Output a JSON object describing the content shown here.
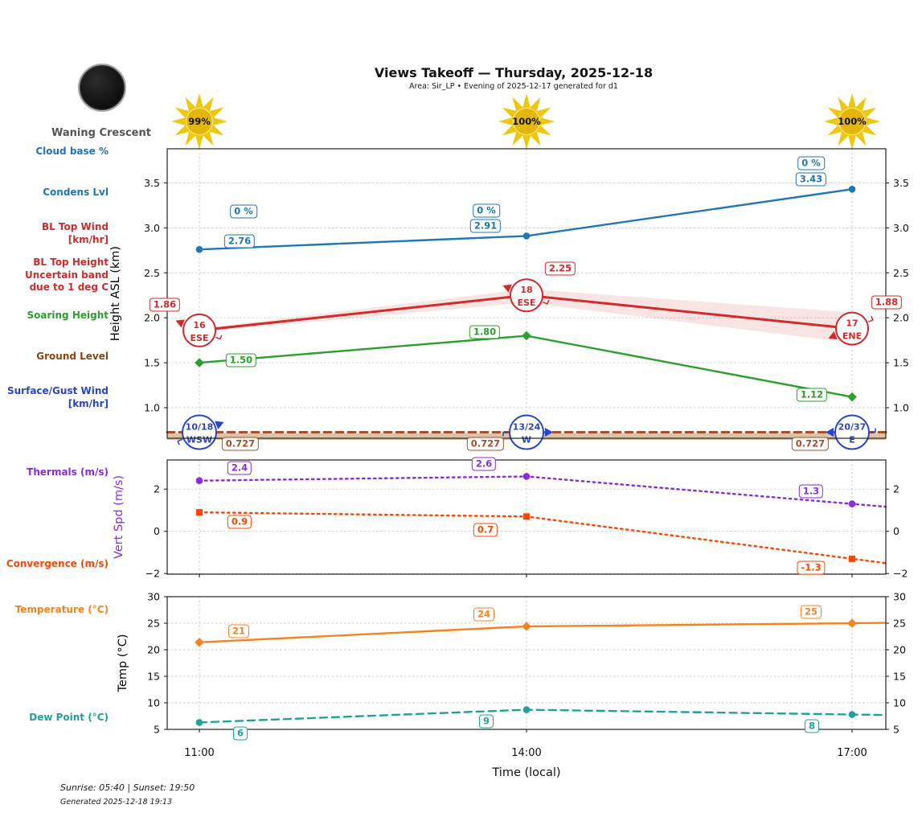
{
  "header": {
    "title": "Views Takeoff — Thursday, 2025-12-18",
    "subtitle": "Area: Sir_LP • Evening of 2025-12-17 generated for d1"
  },
  "moon": {
    "phase": "Waning Crescent"
  },
  "sunshine": {
    "percents": [
      "99%",
      "100%",
      "100%"
    ]
  },
  "xaxis": {
    "ticks": [
      "11:00",
      "14:00",
      "17:00"
    ],
    "label": "Time (local)"
  },
  "footer": {
    "sun_times": "Sunrise: 05:40 | Sunset: 19:50",
    "generated": "Generated 2025-12-18 19:13"
  },
  "colors": {
    "condens_blue": "#1f77b4",
    "bl_red": "#d22b2b",
    "soaring_green": "#2ca02c",
    "ground_brown_text": "#8B4513",
    "ground_line": "#a0522d",
    "ground_band": "#d2b48c",
    "surface_wind_blue": "#2946c8",
    "thermals_purple": "#8a2be2",
    "convergence_orangered": "#ff4500",
    "temperature_orange": "#f78320",
    "dew_teal": "#1fa396",
    "sun_gold": "#e4b606",
    "moon_label_gray": "#555555"
  },
  "side_labels": [
    {
      "id": "cloud_base",
      "lines": [
        "Cloud base %"
      ],
      "color": "#1f77b4"
    },
    {
      "id": "condens",
      "lines": [
        "Condens Lvl"
      ],
      "color": "#1f77b4"
    },
    {
      "id": "bl_top_wind",
      "lines": [
        "BL Top Wind",
        "[km/hr]"
      ],
      "color": "#d22b2b"
    },
    {
      "id": "bl_top_height",
      "lines": [
        "BL Top Height",
        "Uncertain band",
        "due to 1 deg C"
      ],
      "color": "#d22b2b"
    },
    {
      "id": "soaring",
      "lines": [
        "Soaring Height"
      ],
      "color": "#2ca02c"
    },
    {
      "id": "ground",
      "lines": [
        "Ground Level"
      ],
      "color": "#8B4513"
    },
    {
      "id": "surface_wind",
      "lines": [
        "Surface/Gust Wind",
        "[km/hr]"
      ],
      "color": "#2946c8"
    },
    {
      "id": "thermals",
      "lines": [
        "Thermals (m/s)"
      ],
      "color": "#8a2be2"
    },
    {
      "id": "convergence",
      "lines": [
        "Convergence (m/s)"
      ],
      "color": "#ff4500"
    },
    {
      "id": "temperature",
      "lines": [
        "Temperature (°C)"
      ],
      "color": "#f78320"
    },
    {
      "id": "dew_point",
      "lines": [
        "Dew Point (°C)"
      ],
      "color": "#1fa396"
    }
  ],
  "chart_data": [
    {
      "type": "line",
      "ylabel": "Height ASL (km)",
      "ylabel_color": "#000000",
      "x": [
        "11:00",
        "14:00",
        "17:00"
      ],
      "ylim": [
        0.66,
        3.88
      ],
      "yticks": [
        {
          "v": 3.5,
          "label": "3.5"
        },
        {
          "v": 3.0,
          "label": "3.0"
        },
        {
          "v": 2.5,
          "label": "2.5"
        },
        {
          "v": 2.0,
          "label": "2.0"
        },
        {
          "v": 1.5,
          "label": "1.5"
        },
        {
          "v": 1.0,
          "label": "1.0"
        }
      ],
      "series": [
        {
          "id": "condens",
          "name": "Condens Lvl",
          "color": "#1f77b4",
          "style": "solid",
          "marker": "circle",
          "values": [
            2.76,
            2.91,
            3.43
          ],
          "point_labels": [
            "2.76",
            "2.91",
            "3.43"
          ],
          "extra_labels": [
            "0 %",
            "0 %",
            "0 %"
          ],
          "extra_name": "cloud-base-pct"
        },
        {
          "id": "bl_top",
          "name": "BL Top Height",
          "color": "#d22b2b",
          "style": "solid",
          "marker": "none",
          "values": [
            1.86,
            2.25,
            1.88
          ],
          "point_labels": [
            "1.86",
            "2.25",
            "1.88"
          ],
          "band_upper": [
            1.88,
            2.32,
            2.06
          ],
          "band_lower": [
            1.84,
            2.17,
            1.72
          ],
          "wind": [
            {
              "speed": "16",
              "dir": "ESE"
            },
            {
              "speed": "18",
              "dir": "ESE"
            },
            {
              "speed": "17",
              "dir": "ENE"
            }
          ]
        },
        {
          "id": "soaring",
          "name": "Soaring Height",
          "color": "#2ca02c",
          "style": "solid",
          "marker": "diamond",
          "values": [
            1.5,
            1.8,
            1.12
          ],
          "point_labels": [
            "1.50",
            "1.80",
            "1.12"
          ]
        },
        {
          "id": "ground",
          "name": "Ground Level",
          "color": "#a0522d",
          "style": "dashed",
          "marker": "none",
          "full_width": true,
          "band_fill": "#d2b48c",
          "values": [
            0.727,
            0.727,
            0.727
          ],
          "point_labels": [
            "0.727",
            "0.727",
            "0.727"
          ]
        },
        {
          "id": "surface_wind",
          "name": "Surface/Gust Wind",
          "color": "#2946c8",
          "at_value": 0.727,
          "wind": [
            {
              "speed": "10/18",
              "dir": "WSW"
            },
            {
              "speed": "13/24",
              "dir": "W"
            },
            {
              "speed": "20/37",
              "dir": "E"
            }
          ]
        }
      ]
    },
    {
      "type": "line",
      "ylabel": "Vert Spd (m/s)",
      "ylabel_color": "#8a2be2",
      "x": [
        "11:00",
        "14:00",
        "17:00"
      ],
      "ylim": [
        -2.03,
        3.38
      ],
      "yticks": [
        {
          "v": 2,
          "label": "2"
        },
        {
          "v": 0,
          "label": "0"
        },
        {
          "v": -2,
          "label": "−2"
        }
      ],
      "series": [
        {
          "id": "thermals",
          "name": "Thermals (m/s)",
          "color": "#8a2be2",
          "style": "dotted",
          "marker": "circle",
          "values": [
            2.4,
            2.6,
            1.3
          ],
          "point_labels": [
            "2.4",
            "2.6",
            "1.3"
          ]
        },
        {
          "id": "convergence",
          "name": "Convergence (m/s)",
          "color": "#ff4500",
          "style": "dotted",
          "marker": "square",
          "values": [
            0.9,
            0.7,
            -1.3
          ],
          "point_labels": [
            "0.9",
            "0.7",
            "-1.3"
          ]
        }
      ]
    },
    {
      "type": "line",
      "ylabel": "Temp (°C)",
      "ylabel_color": "#000000",
      "xlabel": "Time (local)",
      "x": [
        "11:00",
        "14:00",
        "17:00"
      ],
      "ylim": [
        5,
        30
      ],
      "yticks": [
        {
          "v": 30,
          "label": "30"
        },
        {
          "v": 25,
          "label": "25"
        },
        {
          "v": 20,
          "label": "20"
        },
        {
          "v": 15,
          "label": "15"
        },
        {
          "v": 10,
          "label": "10"
        },
        {
          "v": 5,
          "label": "5"
        }
      ],
      "series": [
        {
          "id": "temperature",
          "name": "Temperature (°C)",
          "color": "#f78320",
          "style": "solid",
          "marker": "diamond",
          "values": [
            21.4,
            24.4,
            25.0
          ],
          "point_labels": [
            "21",
            "24",
            "25"
          ]
        },
        {
          "id": "dew",
          "name": "Dew Point (°C)",
          "color": "#1fa396",
          "style": "dashed",
          "marker": "circle",
          "values": [
            6.3,
            8.7,
            7.8
          ],
          "point_labels": [
            "6",
            "9",
            "8"
          ]
        }
      ]
    }
  ]
}
